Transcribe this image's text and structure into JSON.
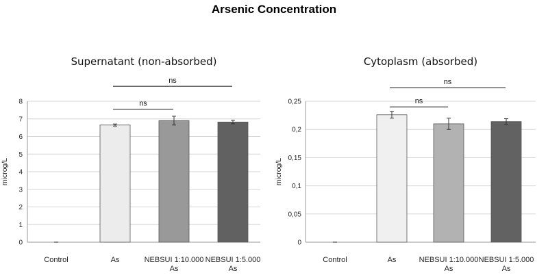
{
  "title": "Arsenic Concentration",
  "chart_data": [
    {
      "type": "bar",
      "title": "Supernatant (non-absorbed)",
      "ylabel": "microg/L",
      "ylim": [
        0,
        8
      ],
      "yticks": [
        0,
        1,
        2,
        3,
        4,
        5,
        6,
        7,
        8
      ],
      "ytick_labels": [
        "0",
        "1",
        "2",
        "3",
        "4",
        "5",
        "6",
        "7",
        "8"
      ],
      "categories": [
        [
          "Control"
        ],
        [
          "As"
        ],
        [
          "NEBSUI 1:10.000",
          "As"
        ],
        [
          "NEBSUI 1:5.000",
          "As"
        ]
      ],
      "values": [
        0,
        6.65,
        6.9,
        6.82
      ],
      "errors": [
        0,
        0.06,
        0.25,
        0.1
      ],
      "bar_colors": [
        "#ffffff",
        "#ececec",
        "#999999",
        "#616161"
      ],
      "grid": true,
      "annotations": [
        {
          "text": "ns",
          "from": 1,
          "to": 2,
          "y": 7.55
        },
        {
          "text": "ns",
          "from": 1,
          "to": 3,
          "y": 8.85
        }
      ]
    },
    {
      "type": "bar",
      "title": "Cytoplasm (absorbed)",
      "ylabel": "microg/L",
      "ylim": [
        0,
        0.25
      ],
      "yticks": [
        0,
        0.05,
        0.1,
        0.15,
        0.2,
        0.25
      ],
      "ytick_labels": [
        "0",
        "0,05",
        "0,1",
        "0,15",
        "0,2",
        "0,25"
      ],
      "categories": [
        [
          "Control"
        ],
        [
          "As"
        ],
        [
          "NEBSUI 1:10.000",
          "As"
        ],
        [
          "NEBSUI 1:5.000",
          "As"
        ]
      ],
      "values": [
        0,
        0.226,
        0.21,
        0.214
      ],
      "errors": [
        0,
        0.006,
        0.01,
        0.005
      ],
      "bar_colors": [
        "#ffffff",
        "#f0f0f0",
        "#b2b2b2",
        "#626262"
      ],
      "grid": true,
      "annotations": [
        {
          "text": "ns",
          "from": 1,
          "to": 2,
          "y": 0.24
        },
        {
          "text": "ns",
          "from": 1,
          "to": 3,
          "y": 0.274
        }
      ]
    }
  ]
}
